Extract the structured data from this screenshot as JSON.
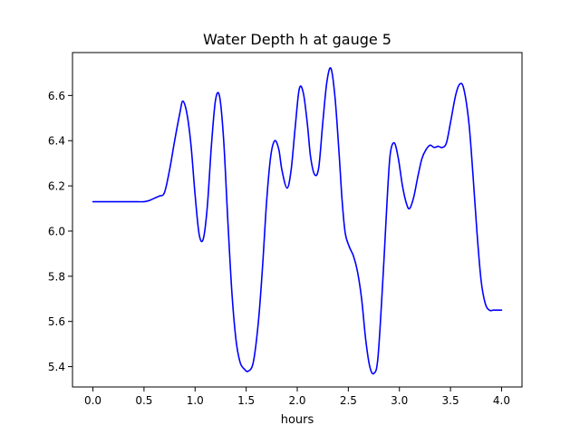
{
  "chart_data": {
    "type": "line",
    "title": "Water Depth h at gauge 5",
    "xlabel": "hours",
    "ylabel": "",
    "xlim": [
      -0.2,
      4.2
    ],
    "ylim": [
      5.31,
      6.79
    ],
    "xticks": [
      0.0,
      0.5,
      1.0,
      1.5,
      2.0,
      2.5,
      3.0,
      3.5,
      4.0
    ],
    "xtick_labels": [
      "0.0",
      "0.5",
      "1.0",
      "1.5",
      "2.0",
      "2.5",
      "3.0",
      "3.5",
      "4.0"
    ],
    "yticks": [
      5.4,
      5.6,
      5.8,
      6.0,
      6.2,
      6.4,
      6.6
    ],
    "ytick_labels": [
      "5.4",
      "5.6",
      "5.8",
      "6.0",
      "6.2",
      "6.4",
      "6.6"
    ],
    "grid": false,
    "series": [
      {
        "color": "#0000ff",
        "x": [
          0.0,
          0.1,
          0.2,
          0.3,
          0.4,
          0.5,
          0.55,
          0.6,
          0.65,
          0.7,
          0.75,
          0.8,
          0.85,
          0.88,
          0.92,
          0.96,
          1.0,
          1.04,
          1.08,
          1.12,
          1.16,
          1.2,
          1.24,
          1.28,
          1.32,
          1.36,
          1.4,
          1.44,
          1.48,
          1.52,
          1.57,
          1.62,
          1.66,
          1.7,
          1.74,
          1.78,
          1.82,
          1.85,
          1.9,
          1.94,
          1.98,
          2.02,
          2.06,
          2.1,
          2.13,
          2.17,
          2.21,
          2.25,
          2.29,
          2.33,
          2.37,
          2.41,
          2.44,
          2.47,
          2.51,
          2.55,
          2.59,
          2.63,
          2.67,
          2.71,
          2.75,
          2.79,
          2.84,
          2.88,
          2.91,
          2.95,
          2.99,
          3.03,
          3.07,
          3.1,
          3.14,
          3.18,
          3.22,
          3.26,
          3.3,
          3.34,
          3.38,
          3.42,
          3.46,
          3.5,
          3.55,
          3.59,
          3.63,
          3.68,
          3.72,
          3.76,
          3.8,
          3.84,
          3.88,
          3.92,
          3.96,
          4.0
        ],
        "y": [
          6.13,
          6.13,
          6.13,
          6.13,
          6.13,
          6.13,
          6.135,
          6.145,
          6.155,
          6.17,
          6.27,
          6.4,
          6.52,
          6.575,
          6.52,
          6.38,
          6.16,
          5.985,
          5.965,
          6.11,
          6.38,
          6.58,
          6.595,
          6.4,
          6.05,
          5.73,
          5.52,
          5.42,
          5.39,
          5.38,
          5.42,
          5.6,
          5.84,
          6.13,
          6.33,
          6.4,
          6.36,
          6.27,
          6.19,
          6.27,
          6.46,
          6.63,
          6.61,
          6.47,
          6.33,
          6.25,
          6.28,
          6.48,
          6.66,
          6.72,
          6.59,
          6.34,
          6.13,
          5.99,
          5.93,
          5.89,
          5.82,
          5.7,
          5.52,
          5.4,
          5.37,
          5.44,
          5.8,
          6.14,
          6.34,
          6.39,
          6.32,
          6.2,
          6.12,
          6.1,
          6.15,
          6.24,
          6.32,
          6.36,
          6.38,
          6.37,
          6.375,
          6.37,
          6.39,
          6.48,
          6.6,
          6.65,
          6.63,
          6.48,
          6.25,
          5.99,
          5.78,
          5.68,
          5.65,
          5.65,
          5.65,
          5.65
        ]
      }
    ]
  }
}
